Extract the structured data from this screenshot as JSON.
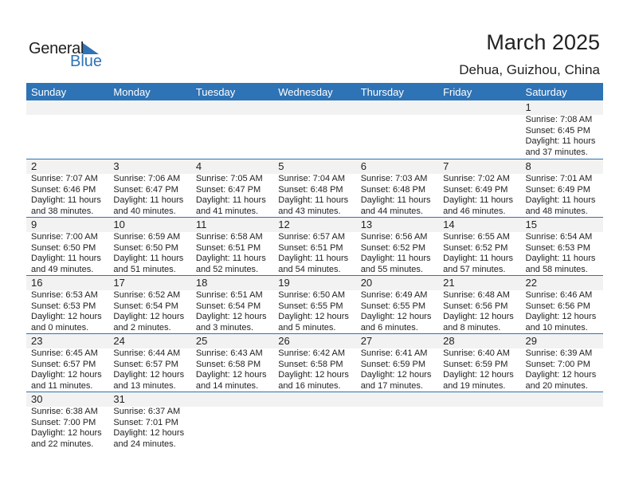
{
  "logo": {
    "line1": "General",
    "line2": "Blue"
  },
  "title": "March 2025",
  "location": "Dehua, Guizhou, China",
  "accent": "#2e73b5",
  "weekdays": [
    "Sunday",
    "Monday",
    "Tuesday",
    "Wednesday",
    "Thursday",
    "Friday",
    "Saturday"
  ],
  "weeks": [
    [
      null,
      null,
      null,
      null,
      null,
      null,
      {
        "day": "1",
        "sunrise": "Sunrise: 7:08 AM",
        "sunset": "Sunset: 6:45 PM",
        "daylight": "Daylight: 11 hours",
        "minutes": "and 37 minutes."
      }
    ],
    [
      {
        "day": "2",
        "sunrise": "Sunrise: 7:07 AM",
        "sunset": "Sunset: 6:46 PM",
        "daylight": "Daylight: 11 hours",
        "minutes": "and 38 minutes."
      },
      {
        "day": "3",
        "sunrise": "Sunrise: 7:06 AM",
        "sunset": "Sunset: 6:47 PM",
        "daylight": "Daylight: 11 hours",
        "minutes": "and 40 minutes."
      },
      {
        "day": "4",
        "sunrise": "Sunrise: 7:05 AM",
        "sunset": "Sunset: 6:47 PM",
        "daylight": "Daylight: 11 hours",
        "minutes": "and 41 minutes."
      },
      {
        "day": "5",
        "sunrise": "Sunrise: 7:04 AM",
        "sunset": "Sunset: 6:48 PM",
        "daylight": "Daylight: 11 hours",
        "minutes": "and 43 minutes."
      },
      {
        "day": "6",
        "sunrise": "Sunrise: 7:03 AM",
        "sunset": "Sunset: 6:48 PM",
        "daylight": "Daylight: 11 hours",
        "minutes": "and 44 minutes."
      },
      {
        "day": "7",
        "sunrise": "Sunrise: 7:02 AM",
        "sunset": "Sunset: 6:49 PM",
        "daylight": "Daylight: 11 hours",
        "minutes": "and 46 minutes."
      },
      {
        "day": "8",
        "sunrise": "Sunrise: 7:01 AM",
        "sunset": "Sunset: 6:49 PM",
        "daylight": "Daylight: 11 hours",
        "minutes": "and 48 minutes."
      }
    ],
    [
      {
        "day": "9",
        "sunrise": "Sunrise: 7:00 AM",
        "sunset": "Sunset: 6:50 PM",
        "daylight": "Daylight: 11 hours",
        "minutes": "and 49 minutes."
      },
      {
        "day": "10",
        "sunrise": "Sunrise: 6:59 AM",
        "sunset": "Sunset: 6:50 PM",
        "daylight": "Daylight: 11 hours",
        "minutes": "and 51 minutes."
      },
      {
        "day": "11",
        "sunrise": "Sunrise: 6:58 AM",
        "sunset": "Sunset: 6:51 PM",
        "daylight": "Daylight: 11 hours",
        "minutes": "and 52 minutes."
      },
      {
        "day": "12",
        "sunrise": "Sunrise: 6:57 AM",
        "sunset": "Sunset: 6:51 PM",
        "daylight": "Daylight: 11 hours",
        "minutes": "and 54 minutes."
      },
      {
        "day": "13",
        "sunrise": "Sunrise: 6:56 AM",
        "sunset": "Sunset: 6:52 PM",
        "daylight": "Daylight: 11 hours",
        "minutes": "and 55 minutes."
      },
      {
        "day": "14",
        "sunrise": "Sunrise: 6:55 AM",
        "sunset": "Sunset: 6:52 PM",
        "daylight": "Daylight: 11 hours",
        "minutes": "and 57 minutes."
      },
      {
        "day": "15",
        "sunrise": "Sunrise: 6:54 AM",
        "sunset": "Sunset: 6:53 PM",
        "daylight": "Daylight: 11 hours",
        "minutes": "and 58 minutes."
      }
    ],
    [
      {
        "day": "16",
        "sunrise": "Sunrise: 6:53 AM",
        "sunset": "Sunset: 6:53 PM",
        "daylight": "Daylight: 12 hours",
        "minutes": "and 0 minutes."
      },
      {
        "day": "17",
        "sunrise": "Sunrise: 6:52 AM",
        "sunset": "Sunset: 6:54 PM",
        "daylight": "Daylight: 12 hours",
        "minutes": "and 2 minutes."
      },
      {
        "day": "18",
        "sunrise": "Sunrise: 6:51 AM",
        "sunset": "Sunset: 6:54 PM",
        "daylight": "Daylight: 12 hours",
        "minutes": "and 3 minutes."
      },
      {
        "day": "19",
        "sunrise": "Sunrise: 6:50 AM",
        "sunset": "Sunset: 6:55 PM",
        "daylight": "Daylight: 12 hours",
        "minutes": "and 5 minutes."
      },
      {
        "day": "20",
        "sunrise": "Sunrise: 6:49 AM",
        "sunset": "Sunset: 6:55 PM",
        "daylight": "Daylight: 12 hours",
        "minutes": "and 6 minutes."
      },
      {
        "day": "21",
        "sunrise": "Sunrise: 6:48 AM",
        "sunset": "Sunset: 6:56 PM",
        "daylight": "Daylight: 12 hours",
        "minutes": "and 8 minutes."
      },
      {
        "day": "22",
        "sunrise": "Sunrise: 6:46 AM",
        "sunset": "Sunset: 6:56 PM",
        "daylight": "Daylight: 12 hours",
        "minutes": "and 10 minutes."
      }
    ],
    [
      {
        "day": "23",
        "sunrise": "Sunrise: 6:45 AM",
        "sunset": "Sunset: 6:57 PM",
        "daylight": "Daylight: 12 hours",
        "minutes": "and 11 minutes."
      },
      {
        "day": "24",
        "sunrise": "Sunrise: 6:44 AM",
        "sunset": "Sunset: 6:57 PM",
        "daylight": "Daylight: 12 hours",
        "minutes": "and 13 minutes."
      },
      {
        "day": "25",
        "sunrise": "Sunrise: 6:43 AM",
        "sunset": "Sunset: 6:58 PM",
        "daylight": "Daylight: 12 hours",
        "minutes": "and 14 minutes."
      },
      {
        "day": "26",
        "sunrise": "Sunrise: 6:42 AM",
        "sunset": "Sunset: 6:58 PM",
        "daylight": "Daylight: 12 hours",
        "minutes": "and 16 minutes."
      },
      {
        "day": "27",
        "sunrise": "Sunrise: 6:41 AM",
        "sunset": "Sunset: 6:59 PM",
        "daylight": "Daylight: 12 hours",
        "minutes": "and 17 minutes."
      },
      {
        "day": "28",
        "sunrise": "Sunrise: 6:40 AM",
        "sunset": "Sunset: 6:59 PM",
        "daylight": "Daylight: 12 hours",
        "minutes": "and 19 minutes."
      },
      {
        "day": "29",
        "sunrise": "Sunrise: 6:39 AM",
        "sunset": "Sunset: 7:00 PM",
        "daylight": "Daylight: 12 hours",
        "minutes": "and 20 minutes."
      }
    ],
    [
      {
        "day": "30",
        "sunrise": "Sunrise: 6:38 AM",
        "sunset": "Sunset: 7:00 PM",
        "daylight": "Daylight: 12 hours",
        "minutes": "and 22 minutes."
      },
      {
        "day": "31",
        "sunrise": "Sunrise: 6:37 AM",
        "sunset": "Sunset: 7:01 PM",
        "daylight": "Daylight: 12 hours",
        "minutes": "and 24 minutes."
      },
      null,
      null,
      null,
      null,
      null
    ]
  ]
}
